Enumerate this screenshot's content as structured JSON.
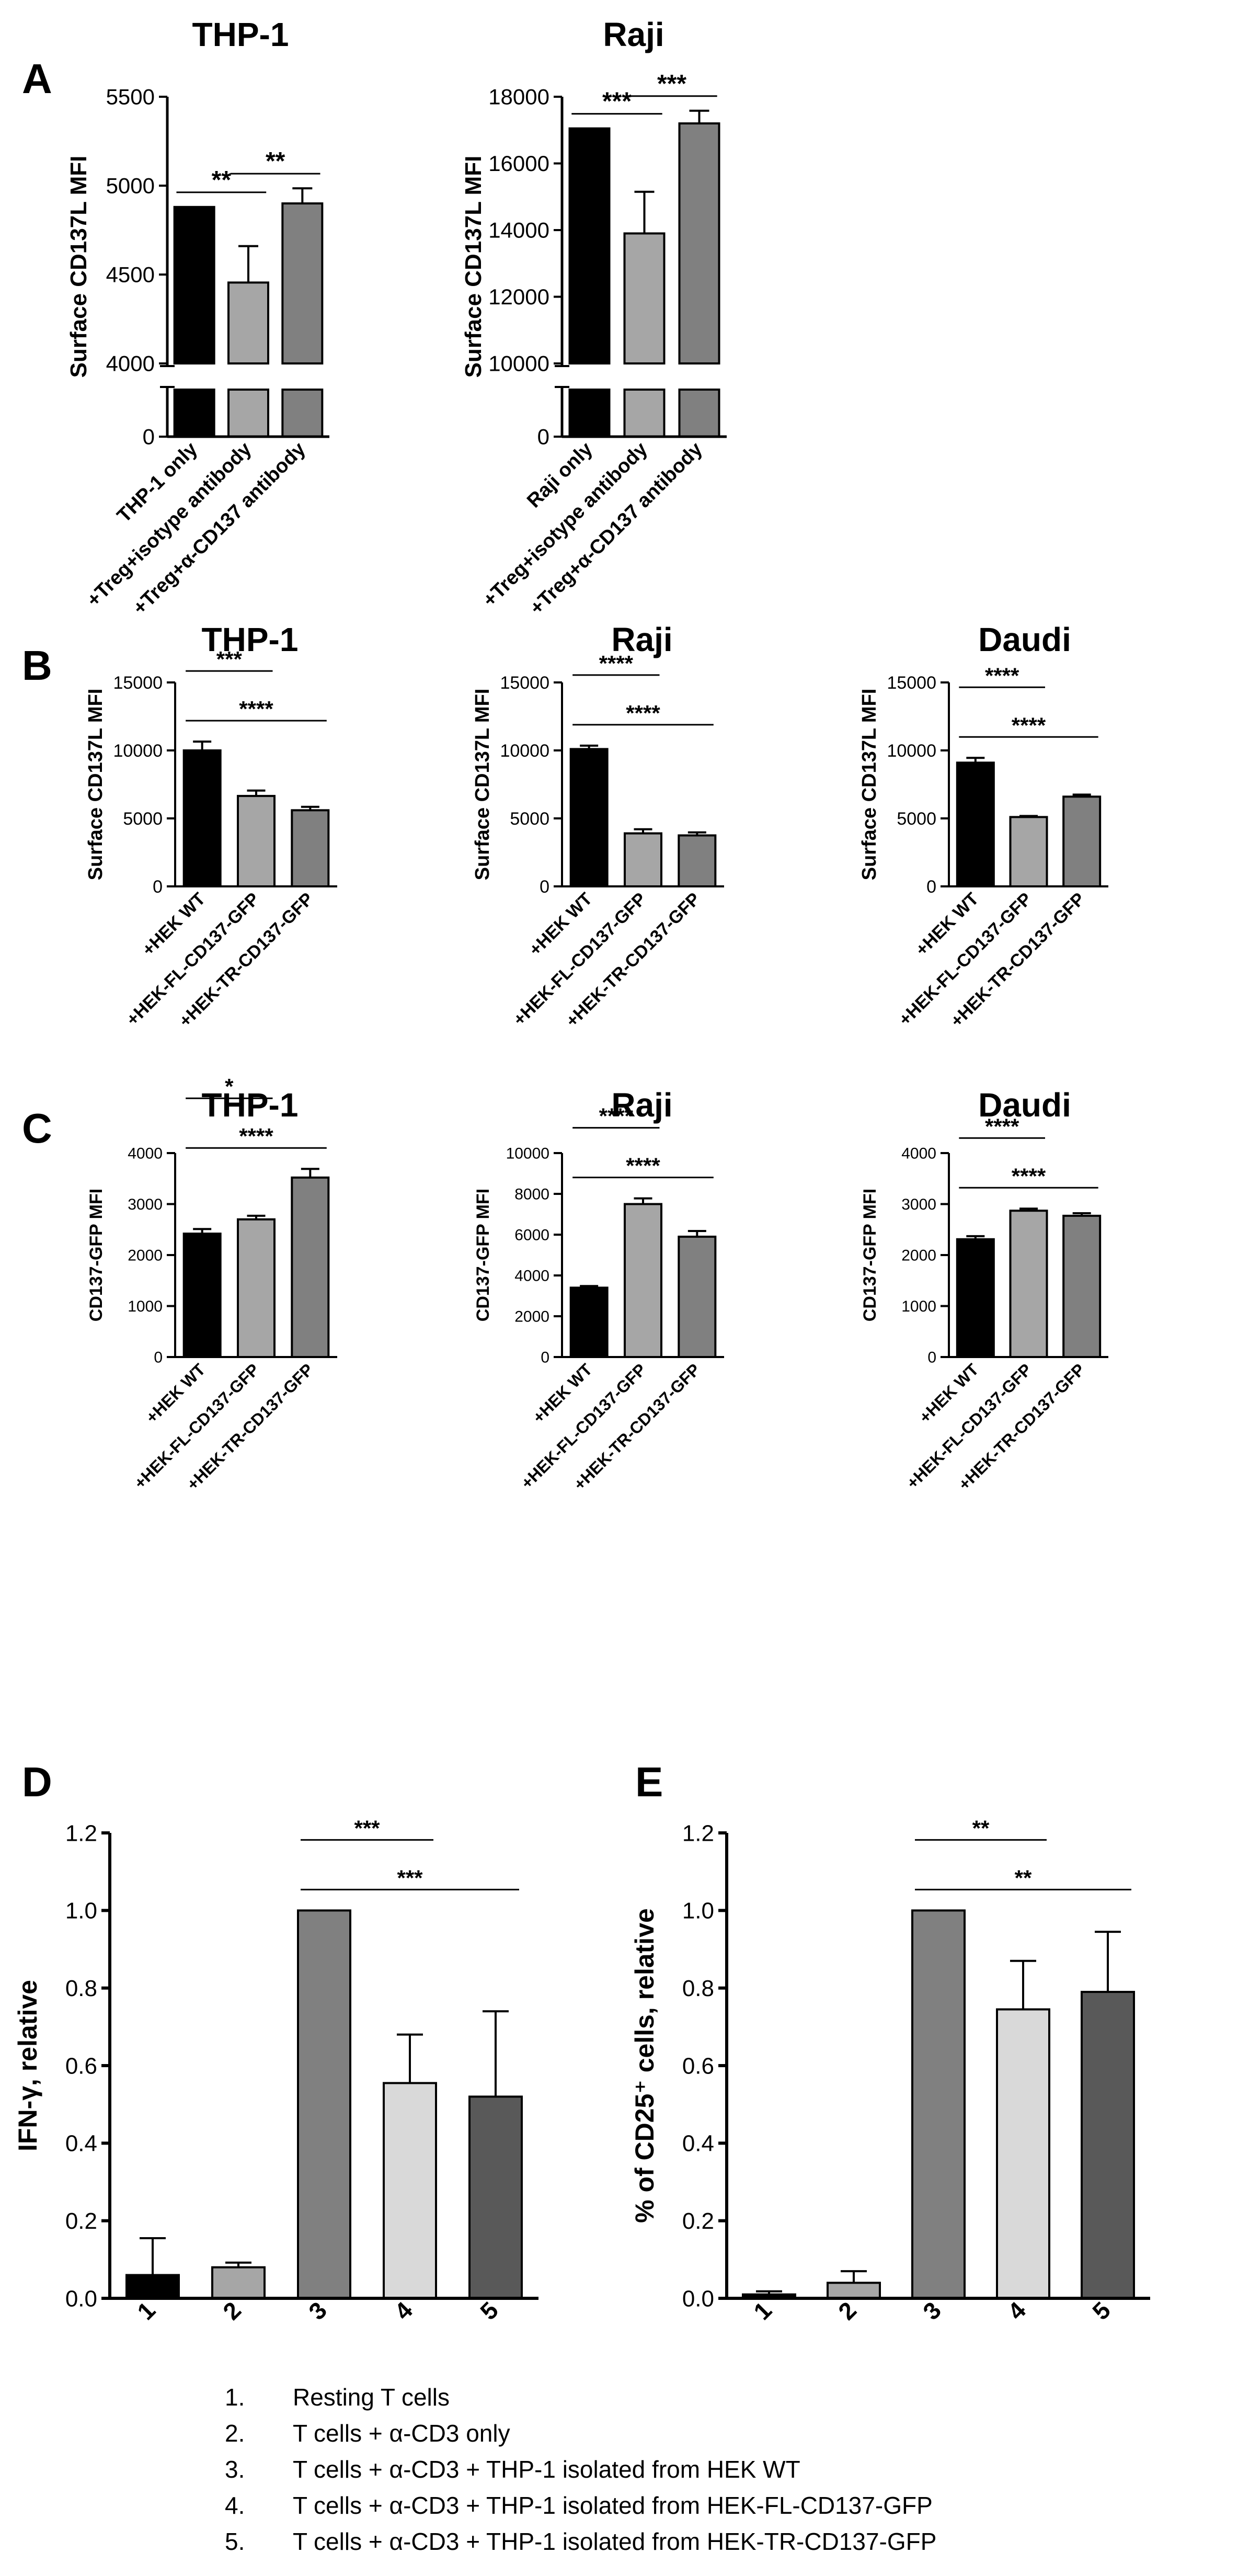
{
  "legend": {
    "items": [
      "1.\tResting T cells",
      "2.\tT cells + α-CD3 only",
      "3.\tT cells + α-CD3 + THP-1 isolated from HEK WT",
      "4.\tT cells + α-CD3 + THP-1 isolated from HEK-FL-CD137-GFP",
      "5.\tT cells + α-CD3 + THP-1 isolated from HEK-TR-CD137-GFP"
    ]
  },
  "chart_data": [
    {
      "panel": "A",
      "title": "THP-1",
      "type": "bar",
      "ylabel": "Surface CD137L MFI",
      "categories": [
        "THP-1 only",
        "+Treg+isotype antibody",
        "+Treg+α-CD137 antibody"
      ],
      "values": [
        4880,
        4455,
        4900
      ],
      "errors": [
        0,
        205,
        85
      ],
      "colors": [
        "#000000",
        "#a6a6a6",
        "#808080"
      ],
      "broken_axis": true,
      "ylim_upper": [
        4000,
        5500
      ],
      "ticks_upper": [
        4000,
        4500,
        5000,
        5500
      ],
      "ylim_lower": [
        0,
        1000
      ],
      "ticks_lower": [
        0
      ],
      "significance": [
        {
          "from": 0,
          "to": 1,
          "label": "**"
        },
        {
          "from": 1,
          "to": 2,
          "label": "**"
        }
      ]
    },
    {
      "panel": "A",
      "title": "Raji",
      "type": "bar",
      "ylabel": "Surface CD137L MFI",
      "categories": [
        "Raji only",
        "+Treg+isotype antibody",
        "+Treg+α-CD137 antibody"
      ],
      "values": [
        17050,
        13900,
        17200
      ],
      "errors": [
        0,
        1250,
        380
      ],
      "colors": [
        "#000000",
        "#a6a6a6",
        "#808080"
      ],
      "broken_axis": true,
      "ylim_upper": [
        10000,
        18000
      ],
      "ticks_upper": [
        10000,
        12000,
        14000,
        16000,
        18000
      ],
      "ylim_lower": [
        0,
        1000
      ],
      "ticks_lower": [
        0
      ],
      "significance": [
        {
          "from": 0,
          "to": 1,
          "label": "***"
        },
        {
          "from": 1,
          "to": 2,
          "label": "***"
        }
      ]
    },
    {
      "panel": "B",
      "title": "THP-1",
      "type": "bar",
      "ylabel": "Surface CD137L MFI",
      "categories": [
        "+HEK WT",
        "+HEK-FL-CD137-GFP",
        "+HEK-TR-CD137-GFP"
      ],
      "values": [
        10000,
        6650,
        5600
      ],
      "errors": [
        650,
        400,
        250
      ],
      "colors": [
        "#000000",
        "#a6a6a6",
        "#808080"
      ],
      "ylim": [
        0,
        15000
      ],
      "ticks": [
        0,
        5000,
        10000,
        15000
      ],
      "significance": [
        {
          "from": 0,
          "to": 1,
          "label": "***"
        },
        {
          "from": 0,
          "to": 2,
          "label": "****"
        }
      ]
    },
    {
      "panel": "B",
      "title": "Raji",
      "type": "bar",
      "ylabel": "Surface CD137L MFI",
      "categories": [
        "+HEK WT",
        "+HEK-FL-CD137-GFP",
        "+HEK-TR-CD137-GFP"
      ],
      "values": [
        10100,
        3900,
        3750
      ],
      "errors": [
        250,
        300,
        220
      ],
      "colors": [
        "#000000",
        "#a6a6a6",
        "#808080"
      ],
      "ylim": [
        0,
        15000
      ],
      "ticks": [
        0,
        5000,
        10000,
        15000
      ],
      "significance": [
        {
          "from": 0,
          "to": 1,
          "label": "****"
        },
        {
          "from": 0,
          "to": 2,
          "label": "****"
        }
      ]
    },
    {
      "panel": "B",
      "title": "Daudi",
      "type": "bar",
      "ylabel": "Surface CD137L MFI",
      "categories": [
        "+HEK WT",
        "+HEK-FL-CD137-GFP",
        "+HEK-TR-CD137-GFP"
      ],
      "values": [
        9100,
        5100,
        6600
      ],
      "errors": [
        350,
        80,
        150
      ],
      "colors": [
        "#000000",
        "#a6a6a6",
        "#808080"
      ],
      "ylim": [
        0,
        15000
      ],
      "ticks": [
        0,
        5000,
        10000,
        15000
      ],
      "significance": [
        {
          "from": 0,
          "to": 1,
          "label": "****"
        },
        {
          "from": 0,
          "to": 2,
          "label": "****"
        }
      ]
    },
    {
      "panel": "C",
      "title": "THP-1",
      "type": "bar",
      "ylabel": "CD137-GFP MFI",
      "categories": [
        "+HEK WT",
        "+HEK-FL-CD137-GFP",
        "+HEK-TR-CD137-GFP"
      ],
      "values": [
        2420,
        2700,
        3520
      ],
      "errors": [
        90,
        70,
        170
      ],
      "colors": [
        "#000000",
        "#a6a6a6",
        "#808080"
      ],
      "ylim": [
        0,
        4000
      ],
      "ticks": [
        0,
        1000,
        2000,
        3000,
        4000
      ],
      "significance": [
        {
          "from": 0,
          "to": 1,
          "label": "*"
        },
        {
          "from": 0,
          "to": 2,
          "label": "****"
        }
      ]
    },
    {
      "panel": "C",
      "title": "Raji",
      "type": "bar",
      "ylabel": "CD137-GFP MFI",
      "categories": [
        "+HEK WT",
        "+HEK-FL-CD137-GFP",
        "+HEK-TR-CD137-GFP"
      ],
      "values": [
        3400,
        7500,
        5900
      ],
      "errors": [
        80,
        280,
        280
      ],
      "colors": [
        "#000000",
        "#a6a6a6",
        "#808080"
      ],
      "ylim": [
        0,
        10000
      ],
      "ticks": [
        0,
        2000,
        4000,
        6000,
        8000,
        10000
      ],
      "significance": [
        {
          "from": 0,
          "to": 1,
          "label": "****"
        },
        {
          "from": 0,
          "to": 2,
          "label": "****"
        }
      ]
    },
    {
      "panel": "C",
      "title": "Daudi",
      "type": "bar",
      "ylabel": "CD137-GFP MFI",
      "categories": [
        "+HEK WT",
        "+HEK-FL-CD137-GFP",
        "+HEK-TR-CD137-GFP"
      ],
      "values": [
        2310,
        2870,
        2770
      ],
      "errors": [
        60,
        40,
        50
      ],
      "colors": [
        "#000000",
        "#a6a6a6",
        "#808080"
      ],
      "ylim": [
        0,
        4000
      ],
      "ticks": [
        0,
        1000,
        2000,
        3000,
        4000
      ],
      "significance": [
        {
          "from": 0,
          "to": 1,
          "label": "****"
        },
        {
          "from": 0,
          "to": 2,
          "label": "****"
        }
      ]
    },
    {
      "panel": "D",
      "title": "",
      "type": "bar",
      "ylabel": "IFN-γ, relative",
      "categories": [
        "1",
        "2",
        "3",
        "4",
        "5"
      ],
      "values": [
        0.06,
        0.08,
        1.0,
        0.555,
        0.52
      ],
      "errors": [
        0.095,
        0.012,
        0,
        0.125,
        0.22
      ],
      "colors": [
        "#000000",
        "#a6a6a6",
        "#808080",
        "#d9d9d9",
        "#595959"
      ],
      "ylim": [
        0,
        1.2
      ],
      "ticks": [
        "0.0",
        "0.2",
        "0.4",
        "0.6",
        "0.8",
        "1.0",
        "1.2"
      ],
      "significance": [
        {
          "from": 2,
          "to": 3,
          "label": "***"
        },
        {
          "from": 2,
          "to": 4,
          "label": "***"
        }
      ]
    },
    {
      "panel": "E",
      "title": "",
      "type": "bar",
      "ylabel": "% of CD25⁺ cells, relative",
      "categories": [
        "1",
        "2",
        "3",
        "4",
        "5"
      ],
      "values": [
        0.01,
        0.04,
        1.0,
        0.745,
        0.79
      ],
      "errors": [
        0.008,
        0.03,
        0,
        0.125,
        0.155
      ],
      "colors": [
        "#000000",
        "#a6a6a6",
        "#808080",
        "#d9d9d9",
        "#595959"
      ],
      "ylim": [
        0,
        1.2
      ],
      "ticks": [
        "0.0",
        "0.2",
        "0.4",
        "0.6",
        "0.8",
        "1.0",
        "1.2"
      ],
      "significance": [
        {
          "from": 2,
          "to": 3,
          "label": "**"
        },
        {
          "from": 2,
          "to": 4,
          "label": "**"
        }
      ]
    }
  ]
}
